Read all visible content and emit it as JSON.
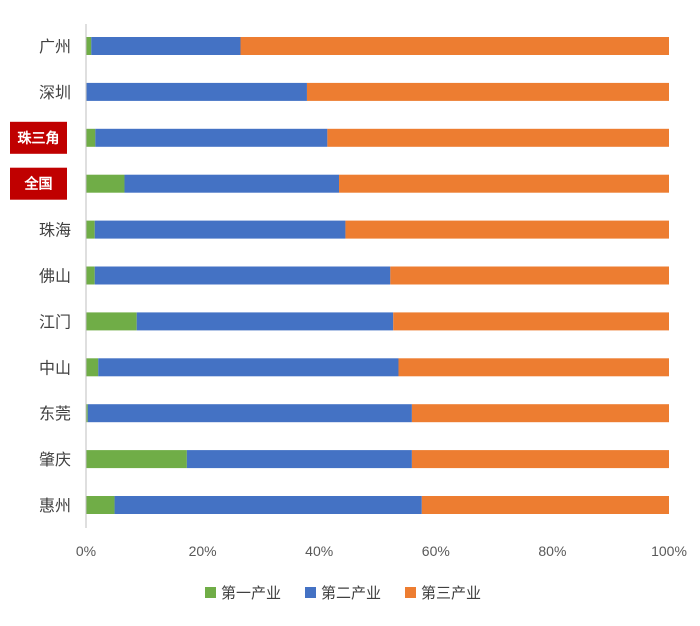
{
  "chart_data": {
    "type": "bar",
    "orientation": "horizontal",
    "stacked": "percent",
    "categories": [
      "广州",
      "深圳",
      "珠三角",
      "全国",
      "珠海",
      "佛山",
      "江门",
      "中山",
      "东莞",
      "肇庆",
      "惠州"
    ],
    "highlighted_categories": [
      "珠三角",
      "全国"
    ],
    "highlight_color": "#c00000",
    "series": [
      {
        "name": "第一产业",
        "color": "#70ad47",
        "values": [
          0.9,
          0.1,
          1.6,
          6.6,
          1.5,
          1.5,
          8.7,
          2.1,
          0.3,
          17.3,
          4.9
        ]
      },
      {
        "name": "第二产业",
        "color": "#4472c4",
        "values": [
          25.6,
          37.8,
          39.8,
          36.8,
          43.0,
          50.7,
          44.0,
          51.5,
          55.6,
          38.6,
          52.7
        ]
      },
      {
        "name": "第三产业",
        "color": "#ed7d31",
        "values": [
          73.5,
          62.1,
          58.6,
          56.6,
          55.5,
          47.8,
          47.3,
          46.4,
          44.1,
          44.1,
          42.4
        ]
      }
    ],
    "xlim": [
      0,
      100
    ],
    "x_ticks": [
      "0%",
      "20%",
      "40%",
      "60%",
      "80%",
      "100%"
    ],
    "grid": false,
    "legend_position": "bottom"
  }
}
